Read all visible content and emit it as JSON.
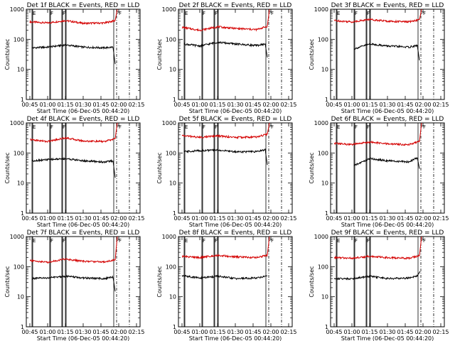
{
  "chart_data": [
    {
      "type": "line",
      "title": "Det 1f BLACK = Events, RED = LLD",
      "xlabel": "Start Time (06-Dec-05 00:44:20)",
      "ylabel": "Counts/sec",
      "yscale": "log",
      "ylim": [
        1,
        1000
      ],
      "xlim": [
        0.0,
        1.6
      ],
      "x_tick_labels": [
        "00:45",
        "01:00",
        "01:15",
        "01:30",
        "01:45",
        "02:00",
        "02:15"
      ],
      "y_tick_labels": [
        "1",
        "10",
        "100",
        "1000"
      ],
      "markers": [
        "E",
        "F",
        "F",
        "FF"
      ],
      "series": [
        {
          "color": "#d40000",
          "points": [
            [
              0.05,
              380
            ],
            [
              0.3,
              350
            ],
            [
              0.55,
              420
            ],
            [
              0.8,
              340
            ],
            [
              1.1,
              350
            ],
            [
              1.25,
              420
            ],
            [
              1.28,
              1000
            ]
          ]
        },
        {
          "color": "#000000",
          "points": [
            [
              0.08,
              52
            ],
            [
              0.3,
              55
            ],
            [
              0.55,
              65
            ],
            [
              0.8,
              55
            ],
            [
              1.1,
              52
            ],
            [
              1.22,
              55
            ],
            [
              1.25,
              15
            ]
          ]
        }
      ]
    },
    {
      "type": "line",
      "title": "Det 2f BLACK = Events, RED = LLD",
      "xlabel": "Start Time (06-Dec-05 00:44:20)",
      "ylabel": "Counts/sec",
      "yscale": "log",
      "ylim": [
        1,
        1000
      ],
      "xlim": [
        0.0,
        1.6
      ],
      "x_tick_labels": [
        "00:45",
        "01:00",
        "01:15",
        "01:30",
        "01:45",
        "02:00",
        "02:15"
      ],
      "y_tick_labels": [
        "1",
        "10",
        "100",
        "1000"
      ],
      "markers": [
        "E",
        "F",
        "F",
        "FF"
      ],
      "series": [
        {
          "color": "#d40000",
          "points": [
            [
              0.05,
              250
            ],
            [
              0.3,
              200
            ],
            [
              0.55,
              260
            ],
            [
              0.8,
              230
            ],
            [
              1.1,
              210
            ],
            [
              1.25,
              270
            ],
            [
              1.28,
              1000
            ]
          ]
        },
        {
          "color": "#000000",
          "points": [
            [
              0.08,
              70
            ],
            [
              0.3,
              60
            ],
            [
              0.55,
              80
            ],
            [
              0.8,
              70
            ],
            [
              1.1,
              62
            ],
            [
              1.22,
              70
            ],
            [
              1.25,
              25
            ]
          ]
        }
      ]
    },
    {
      "type": "line",
      "title": "Det 3f BLACK = Events, RED = LLD",
      "xlabel": "Start Time (06-Dec-05 00:44:20)",
      "ylabel": "Counts/sec",
      "yscale": "log",
      "ylim": [
        1,
        1000
      ],
      "xlim": [
        0.0,
        1.6
      ],
      "x_tick_labels": [
        "00:45",
        "01:00",
        "01:15",
        "01:30",
        "01:45",
        "02:00",
        "02:15"
      ],
      "y_tick_labels": [
        "1",
        "10",
        "100",
        "1000"
      ],
      "markers": [
        "E",
        "F",
        "F",
        "FF"
      ],
      "series": [
        {
          "color": "#d40000",
          "points": [
            [
              0.05,
              420
            ],
            [
              0.3,
              380
            ],
            [
              0.55,
              460
            ],
            [
              0.8,
              400
            ],
            [
              1.1,
              380
            ],
            [
              1.25,
              450
            ],
            [
              1.28,
              1000
            ]
          ]
        },
        {
          "color": "#000000",
          "points": [
            [
              0.33,
              48
            ],
            [
              0.55,
              70
            ],
            [
              0.8,
              60
            ],
            [
              1.1,
              55
            ],
            [
              1.22,
              62
            ],
            [
              1.25,
              20
            ]
          ]
        }
      ]
    },
    {
      "type": "line",
      "title": "Det 4f BLACK = Events, RED = LLD",
      "xlabel": "Start Time (06-Dec-05 00:44:20)",
      "ylabel": "Counts/sec",
      "yscale": "log",
      "ylim": [
        1,
        1000
      ],
      "xlim": [
        0.0,
        1.6
      ],
      "x_tick_labels": [
        "00:45",
        "01:00",
        "01:15",
        "01:30",
        "01:45",
        "02:00",
        "02:15"
      ],
      "y_tick_labels": [
        "1",
        "10",
        "100",
        "1000"
      ],
      "markers": [
        "E",
        "F",
        "F",
        "FF"
      ],
      "series": [
        {
          "color": "#d40000",
          "points": [
            [
              0.05,
              280
            ],
            [
              0.3,
              240
            ],
            [
              0.55,
              320
            ],
            [
              0.8,
              250
            ],
            [
              1.1,
              240
            ],
            [
              1.25,
              300
            ],
            [
              1.28,
              1000
            ]
          ]
        },
        {
          "color": "#000000",
          "points": [
            [
              0.08,
              55
            ],
            [
              0.3,
              60
            ],
            [
              0.55,
              65
            ],
            [
              0.8,
              55
            ],
            [
              1.1,
              50
            ],
            [
              1.22,
              55
            ],
            [
              1.25,
              15
            ]
          ]
        }
      ]
    },
    {
      "type": "line",
      "title": "Det 5f BLACK = Events, RED = LLD",
      "xlabel": "Start Time (06-Dec-05 00:44:20)",
      "ylabel": "Counts/sec",
      "yscale": "log",
      "ylim": [
        1,
        1000
      ],
      "xlim": [
        0.0,
        1.6
      ],
      "x_tick_labels": [
        "00:45",
        "01:00",
        "01:15",
        "01:30",
        "01:45",
        "02:00",
        "02:15"
      ],
      "y_tick_labels": [
        "1",
        "10",
        "100",
        "1000"
      ],
      "markers": [
        "E",
        "F",
        "F",
        "FF"
      ],
      "series": [
        {
          "color": "#d40000",
          "points": [
            [
              0.05,
              380
            ],
            [
              0.3,
              330
            ],
            [
              0.55,
              370
            ],
            [
              0.8,
              330
            ],
            [
              1.1,
              340
            ],
            [
              1.25,
              420
            ],
            [
              1.28,
              1000
            ]
          ]
        },
        {
          "color": "#000000",
          "points": [
            [
              0.08,
              110
            ],
            [
              0.3,
              120
            ],
            [
              0.55,
              125
            ],
            [
              0.8,
              110
            ],
            [
              1.1,
              110
            ],
            [
              1.22,
              130
            ],
            [
              1.25,
              40
            ]
          ]
        }
      ]
    },
    {
      "type": "line",
      "title": "Det 6f BLACK = Events, RED = LLD",
      "xlabel": "Start Time (06-Dec-05 00:44:20)",
      "ylabel": "Counts/sec",
      "yscale": "log",
      "ylim": [
        1,
        1000
      ],
      "xlim": [
        0.0,
        1.6
      ],
      "x_tick_labels": [
        "00:45",
        "01:00",
        "01:15",
        "01:30",
        "01:45",
        "02:00",
        "02:15"
      ],
      "y_tick_labels": [
        "1",
        "10",
        "100",
        "1000"
      ],
      "markers": [
        "E",
        "F",
        "F",
        "FF"
      ],
      "series": [
        {
          "color": "#d40000",
          "points": [
            [
              0.05,
              210
            ],
            [
              0.3,
              190
            ],
            [
              0.55,
              230
            ],
            [
              0.8,
              200
            ],
            [
              1.1,
              190
            ],
            [
              1.25,
              240
            ],
            [
              1.28,
              1000
            ]
          ]
        },
        {
          "color": "#000000",
          "points": [
            [
              0.33,
              38
            ],
            [
              0.55,
              65
            ],
            [
              0.8,
              55
            ],
            [
              1.1,
              50
            ],
            [
              1.22,
              70
            ],
            [
              1.25,
              30
            ]
          ]
        }
      ]
    },
    {
      "type": "line",
      "title": "Det 7f BLACK = Events, RED = LLD",
      "xlabel": "Start Time (06-Dec-05 00:44:20)",
      "ylabel": "Counts/sec",
      "yscale": "log",
      "ylim": [
        1,
        1000
      ],
      "xlim": [
        0.0,
        1.6
      ],
      "x_tick_labels": [
        "00:45",
        "01:00",
        "01:15",
        "01:30",
        "01:45",
        "02:00",
        "02:15"
      ],
      "y_tick_labels": [
        "1",
        "10",
        "100",
        "1000"
      ],
      "markers": [
        "E",
        "F",
        "F",
        "FF"
      ],
      "series": [
        {
          "color": "#d40000",
          "points": [
            [
              0.05,
              160
            ],
            [
              0.3,
              140
            ],
            [
              0.55,
              180
            ],
            [
              0.8,
              150
            ],
            [
              1.1,
              145
            ],
            [
              1.25,
              170
            ],
            [
              1.28,
              1000
            ]
          ]
        },
        {
          "color": "#000000",
          "points": [
            [
              0.08,
              40
            ],
            [
              0.3,
              42
            ],
            [
              0.55,
              48
            ],
            [
              0.8,
              42
            ],
            [
              1.1,
              40
            ],
            [
              1.22,
              45
            ],
            [
              1.25,
              15
            ]
          ]
        }
      ]
    },
    {
      "type": "line",
      "title": "Det 8f BLACK = Events, RED = LLD",
      "xlabel": "Start Time (06-Dec-05 00:44:20)",
      "ylabel": "Counts/sec",
      "yscale": "log",
      "ylim": [
        1,
        1000
      ],
      "xlim": [
        0.0,
        1.6
      ],
      "x_tick_labels": [
        "00:45",
        "01:00",
        "01:15",
        "01:30",
        "01:45",
        "02:00",
        "02:15"
      ],
      "y_tick_labels": [
        "1",
        "10",
        "100",
        "1000"
      ],
      "markers": [
        "E",
        "F",
        "F",
        "FF"
      ],
      "series": [
        {
          "color": "#d40000",
          "points": [
            [
              0.05,
              220
            ],
            [
              0.3,
              200
            ],
            [
              0.55,
              240
            ],
            [
              0.8,
              210
            ],
            [
              1.1,
              200
            ],
            [
              1.25,
              240
            ],
            [
              1.28,
              1000
            ]
          ]
        },
        {
          "color": "#000000",
          "points": [
            [
              0.05,
              50
            ],
            [
              0.3,
              42
            ],
            [
              0.55,
              48
            ],
            [
              0.8,
              40
            ],
            [
              1.1,
              42
            ],
            [
              1.25,
              50
            ]
          ]
        }
      ]
    },
    {
      "type": "line",
      "title": "Det 9f BLACK = Events, RED = LLD",
      "xlabel": "Start Time (06-Dec-05 00:44:20)",
      "ylabel": "Counts/sec",
      "yscale": "log",
      "ylim": [
        1,
        1000
      ],
      "xlim": [
        0.0,
        1.6
      ],
      "x_tick_labels": [
        "00:45",
        "01:00",
        "01:15",
        "01:30",
        "01:45",
        "02:00",
        "02:15"
      ],
      "y_tick_labels": [
        "1",
        "10",
        "100",
        "1000"
      ],
      "markers": [
        "E",
        "F",
        "F",
        "FF"
      ],
      "series": [
        {
          "color": "#d40000",
          "points": [
            [
              0.05,
              200
            ],
            [
              0.3,
              190
            ],
            [
              0.55,
              220
            ],
            [
              0.8,
              200
            ],
            [
              1.1,
              190
            ],
            [
              1.25,
              230
            ],
            [
              1.28,
              1000
            ]
          ]
        },
        {
          "color": "#000000",
          "points": [
            [
              0.05,
              40
            ],
            [
              0.3,
              40
            ],
            [
              0.55,
              48
            ],
            [
              0.8,
              40
            ],
            [
              1.1,
              42
            ],
            [
              1.22,
              50
            ],
            [
              1.26,
              70
            ]
          ]
        }
      ]
    }
  ]
}
